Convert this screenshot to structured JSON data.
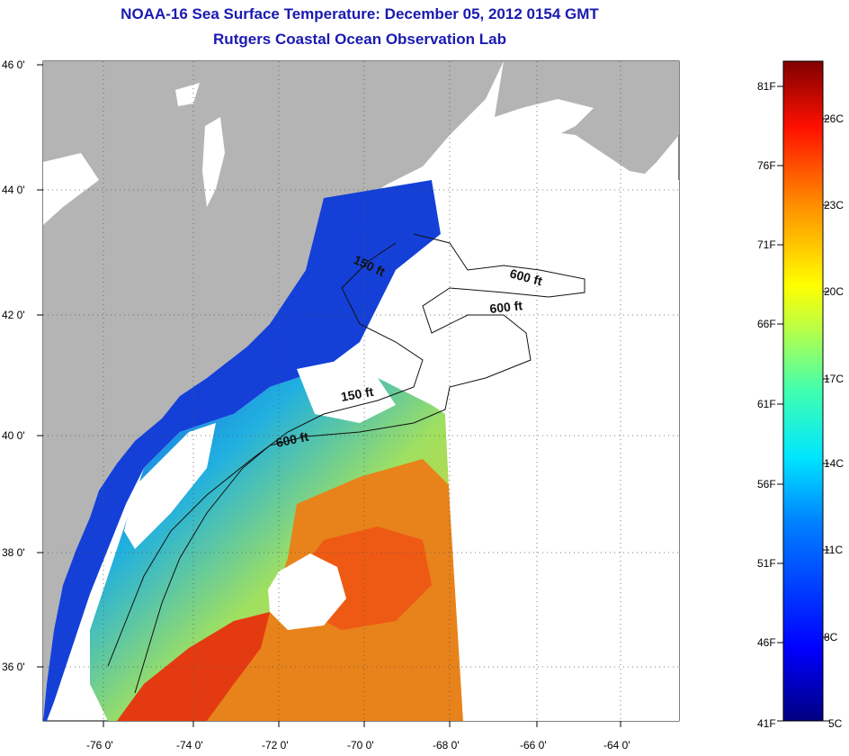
{
  "header": {
    "title": "NOAA-16 Sea Surface Temperature:  December 05, 2012 0154 GMT",
    "subtitle": "Rutgers Coastal Ocean Observation Lab"
  },
  "axes": {
    "lon_ticks": [
      "-76 0'",
      "-74 0'",
      "-72 0'",
      "-70 0'",
      "-68 0'",
      "-66 0'",
      "-64 0'"
    ],
    "lat_ticks": [
      "46 0'",
      "44 0'",
      "42 0'",
      "40 0'",
      "38 0'",
      "36 0'"
    ]
  },
  "contours": {
    "labels": [
      "600 ft",
      "600 ft",
      "150 ft",
      "600 ft",
      "150 ft"
    ]
  },
  "colorbar": {
    "fahrenheit": [
      "81F",
      "76F",
      "71F",
      "66F",
      "61F",
      "56F",
      "51F",
      "46F",
      "41F"
    ],
    "celsius": [
      "26C",
      "23C",
      "20C",
      "17C",
      "14C",
      "11C",
      "8C",
      "5C"
    ]
  },
  "colors": {
    "title": "#1a1ab0",
    "land": "#b4b4b4",
    "cloud": "#ffffff",
    "cold": "#0a1e96",
    "mid": "#19b4e6",
    "warm": "#e63c14"
  }
}
